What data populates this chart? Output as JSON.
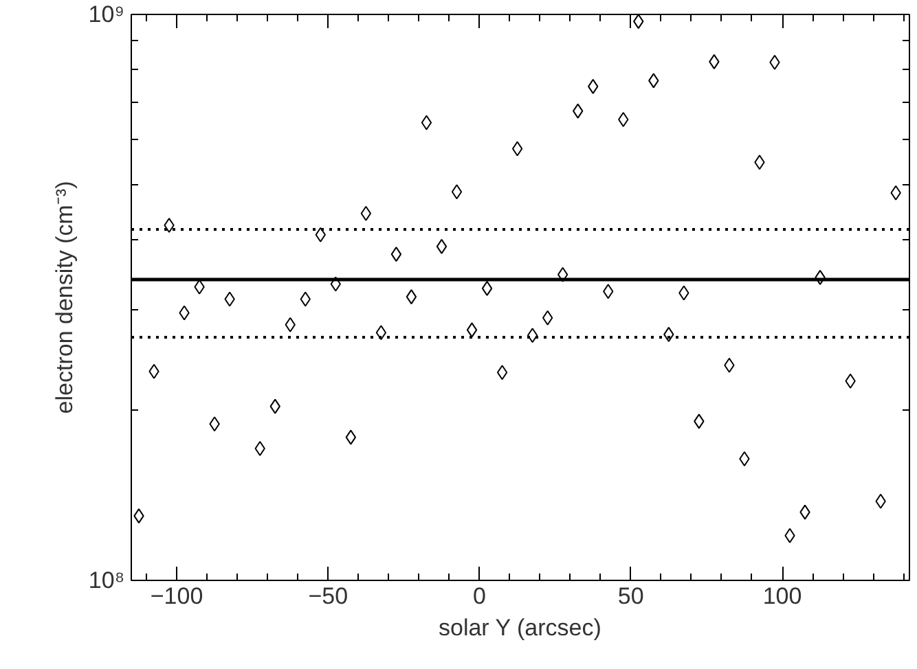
{
  "chart_data": {
    "type": "scatter",
    "xlabel": "solar Y (arcsec)",
    "ylabel": "electron density (cm⁻³)",
    "x": [
      -112.5,
      -107.5,
      -102.5,
      -97.5,
      -92.5,
      -87.5,
      -82.5,
      -72.5,
      -67.5,
      -62.5,
      -57.5,
      -52.5,
      -47.5,
      -42.5,
      -37.5,
      -32.5,
      -27.5,
      -22.5,
      -17.5,
      -12.5,
      -7.5,
      -2.5,
      2.5,
      7.5,
      12.5,
      17.5,
      22.5,
      27.5,
      32.5,
      37.5,
      42.5,
      47.5,
      52.5,
      57.5,
      62.5,
      67.5,
      72.5,
      77.5,
      82.5,
      87.5,
      92.5,
      97.5,
      102.5,
      107.5,
      112.5,
      122.5,
      132.5,
      137.5
    ],
    "series": [
      {
        "color": "#000000",
        "values": [
          130000000.0,
          234000000.0,
          424000000.0,
          297000000.0,
          330000000.0,
          189000000.0,
          314000000.0,
          171000000.0,
          203000000.0,
          283000000.0,
          314000000.0,
          408000000.0,
          334000000.0,
          179000000.0,
          445000000.0,
          274000000.0,
          377000000.0,
          317000000.0,
          644000000.0,
          389000000.0,
          486000000.0,
          277000000.0,
          328000000.0,
          233000000.0,
          579000000.0,
          271000000.0,
          291000000.0,
          347000000.0,
          675000000.0,
          746000000.0,
          324000000.0,
          652000000.0,
          972000000.0,
          764000000.0,
          272000000.0,
          322000000.0,
          191000000.0,
          825000000.0,
          240000000.0,
          164000000.0,
          548000000.0,
          823000000.0,
          120000000.0,
          132000000.0,
          343000000.0,
          225000000.0,
          138000000.0,
          484000000.0
        ]
      }
    ],
    "marker": "diamond",
    "log": "y",
    "grid": false,
    "xlim": [
      -115,
      142
    ],
    "xticks": [
      -100,
      -50,
      0,
      50,
      100
    ],
    "ylim": [
      100000000.0,
      1000000000.0
    ],
    "yticks": [
      {
        "value": 100000000.0,
        "label": "10⁸"
      },
      {
        "value": 1000000000.0,
        "label": "10⁹"
      }
    ],
    "ref_lines": [
      {
        "axis": "y",
        "value": 340000000.0,
        "line_style": "solid",
        "color": "#000000"
      },
      {
        "axis": "y",
        "value": 417000000.0,
        "line_style": "dotted",
        "color": "#000000"
      },
      {
        "axis": "y",
        "value": 269000000.0,
        "line_style": "dotted",
        "color": "#000000"
      }
    ]
  }
}
